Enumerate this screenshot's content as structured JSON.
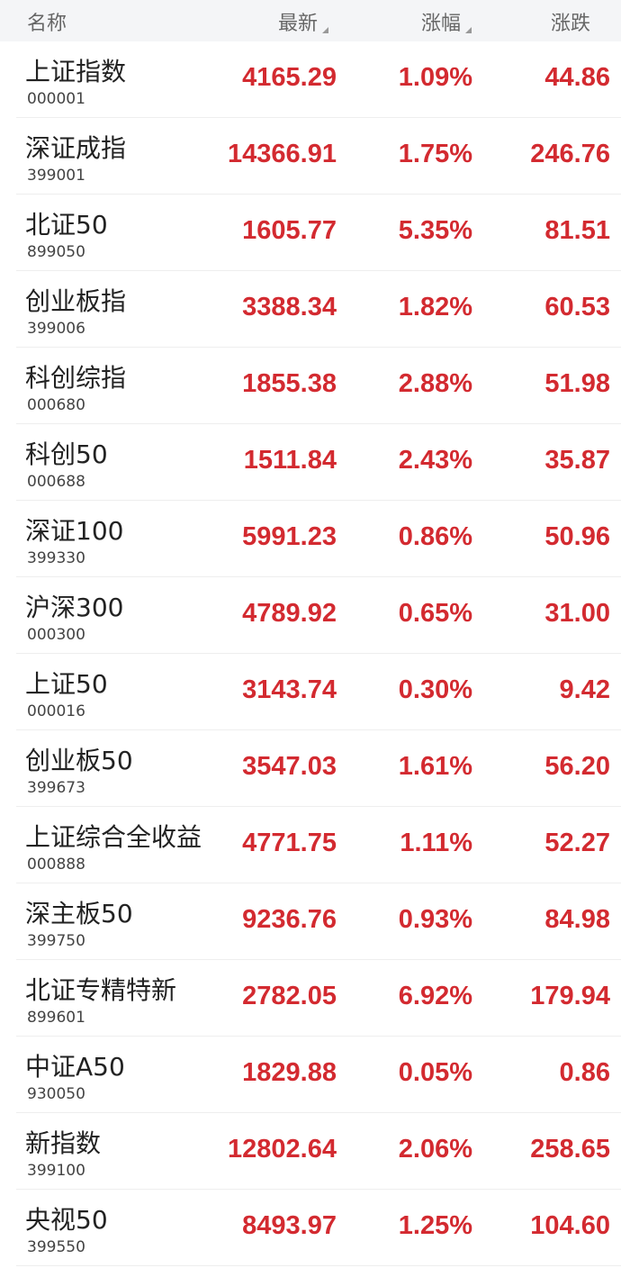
{
  "header": {
    "name": "名称",
    "latest": "最新",
    "pct": "涨幅",
    "chg": "涨跌"
  },
  "colors": {
    "up": "#d32a30"
  },
  "rows": [
    {
      "name": "上证指数",
      "code": "000001",
      "latest": "4165.29",
      "pct": "1.09%",
      "chg": "44.86"
    },
    {
      "name": "深证成指",
      "code": "399001",
      "latest": "14366.91",
      "pct": "1.75%",
      "chg": "246.76"
    },
    {
      "name": "北证50",
      "code": "899050",
      "latest": "1605.77",
      "pct": "5.35%",
      "chg": "81.51"
    },
    {
      "name": "创业板指",
      "code": "399006",
      "latest": "3388.34",
      "pct": "1.82%",
      "chg": "60.53"
    },
    {
      "name": "科创综指",
      "code": "000680",
      "latest": "1855.38",
      "pct": "2.88%",
      "chg": "51.98"
    },
    {
      "name": "科创50",
      "code": "000688",
      "latest": "1511.84",
      "pct": "2.43%",
      "chg": "35.87"
    },
    {
      "name": "深证100",
      "code": "399330",
      "latest": "5991.23",
      "pct": "0.86%",
      "chg": "50.96"
    },
    {
      "name": "沪深300",
      "code": "000300",
      "latest": "4789.92",
      "pct": "0.65%",
      "chg": "31.00"
    },
    {
      "name": "上证50",
      "code": "000016",
      "latest": "3143.74",
      "pct": "0.30%",
      "chg": "9.42"
    },
    {
      "name": "创业板50",
      "code": "399673",
      "latest": "3547.03",
      "pct": "1.61%",
      "chg": "56.20"
    },
    {
      "name": "上证综合全收益",
      "code": "000888",
      "latest": "4771.75",
      "pct": "1.11%",
      "chg": "52.27"
    },
    {
      "name": "深主板50",
      "code": "399750",
      "latest": "9236.76",
      "pct": "0.93%",
      "chg": "84.98"
    },
    {
      "name": "北证专精特新",
      "code": "899601",
      "latest": "2782.05",
      "pct": "6.92%",
      "chg": "179.94"
    },
    {
      "name": "中证A50",
      "code": "930050",
      "latest": "1829.88",
      "pct": "0.05%",
      "chg": "0.86"
    },
    {
      "name": "新指数",
      "code": "399100",
      "latest": "12802.64",
      "pct": "2.06%",
      "chg": "258.65"
    },
    {
      "name": "央视50",
      "code": "399550",
      "latest": "8493.97",
      "pct": "1.25%",
      "chg": "104.60"
    }
  ]
}
